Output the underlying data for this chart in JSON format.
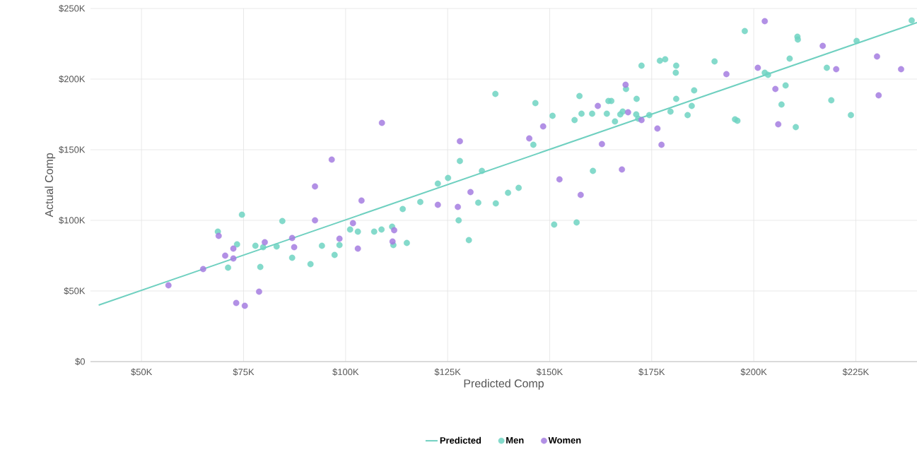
{
  "chart_data": {
    "type": "scatter",
    "xlabel": "Predicted Comp",
    "ylabel": "Actual Comp",
    "xlim": [
      37.5,
      240
    ],
    "ylim": [
      0,
      250
    ],
    "xticks": [
      {
        "value": 50,
        "label": "$50K"
      },
      {
        "value": 75,
        "label": "$75K"
      },
      {
        "value": 100,
        "label": "$100K"
      },
      {
        "value": 125,
        "label": "$125K"
      },
      {
        "value": 150,
        "label": "$150K"
      },
      {
        "value": 175,
        "label": "$175K"
      },
      {
        "value": 200,
        "label": "$200K"
      },
      {
        "value": 225,
        "label": "$225K"
      }
    ],
    "yticks": [
      {
        "value": 0,
        "label": "$0"
      },
      {
        "value": 50,
        "label": "$50K"
      },
      {
        "value": 100,
        "label": "$100K"
      },
      {
        "value": 150,
        "label": "$150K"
      },
      {
        "value": 200,
        "label": "$200K"
      },
      {
        "value": 250,
        "label": "$250K"
      }
    ],
    "grid": true,
    "legend": "bottom",
    "marker": "circle",
    "series": [
      {
        "name": "Predicted",
        "type": "line",
        "marker": "none",
        "color": "#6fd0c0",
        "x": [
          39.5,
          240
        ],
        "values": [
          40,
          240
        ]
      },
      {
        "name": "Men",
        "color": "#6fd3c2",
        "x": [
          68.7,
          74.6,
          71.2,
          73.4,
          79.1,
          77.9,
          79.8,
          83.1,
          84.5,
          86.9,
          91.4,
          94.2,
          97.3,
          98.5,
          101.1,
          103.0,
          107.0,
          108.8,
          111.7,
          111.4,
          114.0,
          115.0,
          118.3,
          122.6,
          125.1,
          128.0,
          127.7,
          130.2,
          133.4,
          132.5,
          136.8,
          139.8,
          142.4,
          136.7,
          146.5,
          146.0,
          150.7,
          151.1,
          156.6,
          157.3,
          157.8,
          156.1,
          160.6,
          160.4,
          164.0,
          164.4,
          165.1,
          166.0,
          167.3,
          168.7,
          167.9,
          171.2,
          171.3,
          171.7,
          172.5,
          174.4,
          177.0,
          178.3,
          179.6,
          180.9,
          181.0,
          181.0,
          183.8,
          185.4,
          184.8,
          190.4,
          195.4,
          196.0,
          197.8,
          202.7,
          203.5,
          206.8,
          207.8,
          208.8,
          210.3,
          210.7,
          210.8,
          217.9,
          219.0,
          223.8,
          225.2,
          238.7
        ],
        "values": [
          92,
          104,
          66.5,
          83,
          67,
          82,
          81,
          81.5,
          99.5,
          73.5,
          69,
          82,
          75.5,
          82.5,
          93.5,
          92,
          92,
          93.5,
          82.5,
          95.5,
          108,
          84,
          113,
          126,
          130,
          142,
          100,
          86,
          135,
          112.5,
          112,
          119.5,
          123,
          189.5,
          183,
          153.5,
          174,
          97,
          98.5,
          188,
          175.5,
          171,
          135,
          175.5,
          175.5,
          184.5,
          184.5,
          170,
          175,
          193,
          177,
          175,
          186,
          172,
          209.5,
          174.5,
          213,
          214,
          177,
          204.5,
          209.5,
          186,
          174.5,
          192,
          181,
          212.5,
          171.5,
          170.5,
          234,
          204.5,
          203,
          182,
          195.5,
          214.5,
          166,
          230,
          228,
          208,
          185,
          174.5,
          227,
          241.5
        ]
      },
      {
        "name": "Women",
        "color": "#a57de0",
        "x": [
          56.6,
          65.1,
          68.9,
          70.5,
          72.5,
          72.5,
          73.2,
          75.3,
          78.8,
          80.2,
          86.9,
          87.4,
          92.5,
          92.5,
          96.6,
          98.5,
          101.8,
          103.0,
          103.9,
          108.9,
          111.9,
          111.5,
          122.6,
          127.5,
          128.0,
          130.6,
          145.0,
          148.4,
          152.4,
          157.6,
          161.8,
          162.8,
          168.6,
          167.7,
          169.2,
          172.5,
          176.4,
          177.4,
          193.3,
          201.0,
          202.7,
          205.3,
          206.0,
          216.9,
          220.2,
          230.2,
          230.6,
          236.1
        ],
        "values": [
          54,
          65.5,
          89,
          75,
          80,
          73,
          41.5,
          39.5,
          49.5,
          84.5,
          87.5,
          81,
          124,
          100,
          143,
          87,
          98,
          80,
          114,
          169,
          93,
          85,
          111,
          109.5,
          156,
          120,
          158,
          166.5,
          129,
          118,
          181,
          154,
          196,
          136,
          176.5,
          171,
          165,
          153.5,
          203.5,
          208,
          241,
          193,
          168,
          223.5,
          207,
          216,
          188.5,
          207
        ]
      }
    ]
  }
}
